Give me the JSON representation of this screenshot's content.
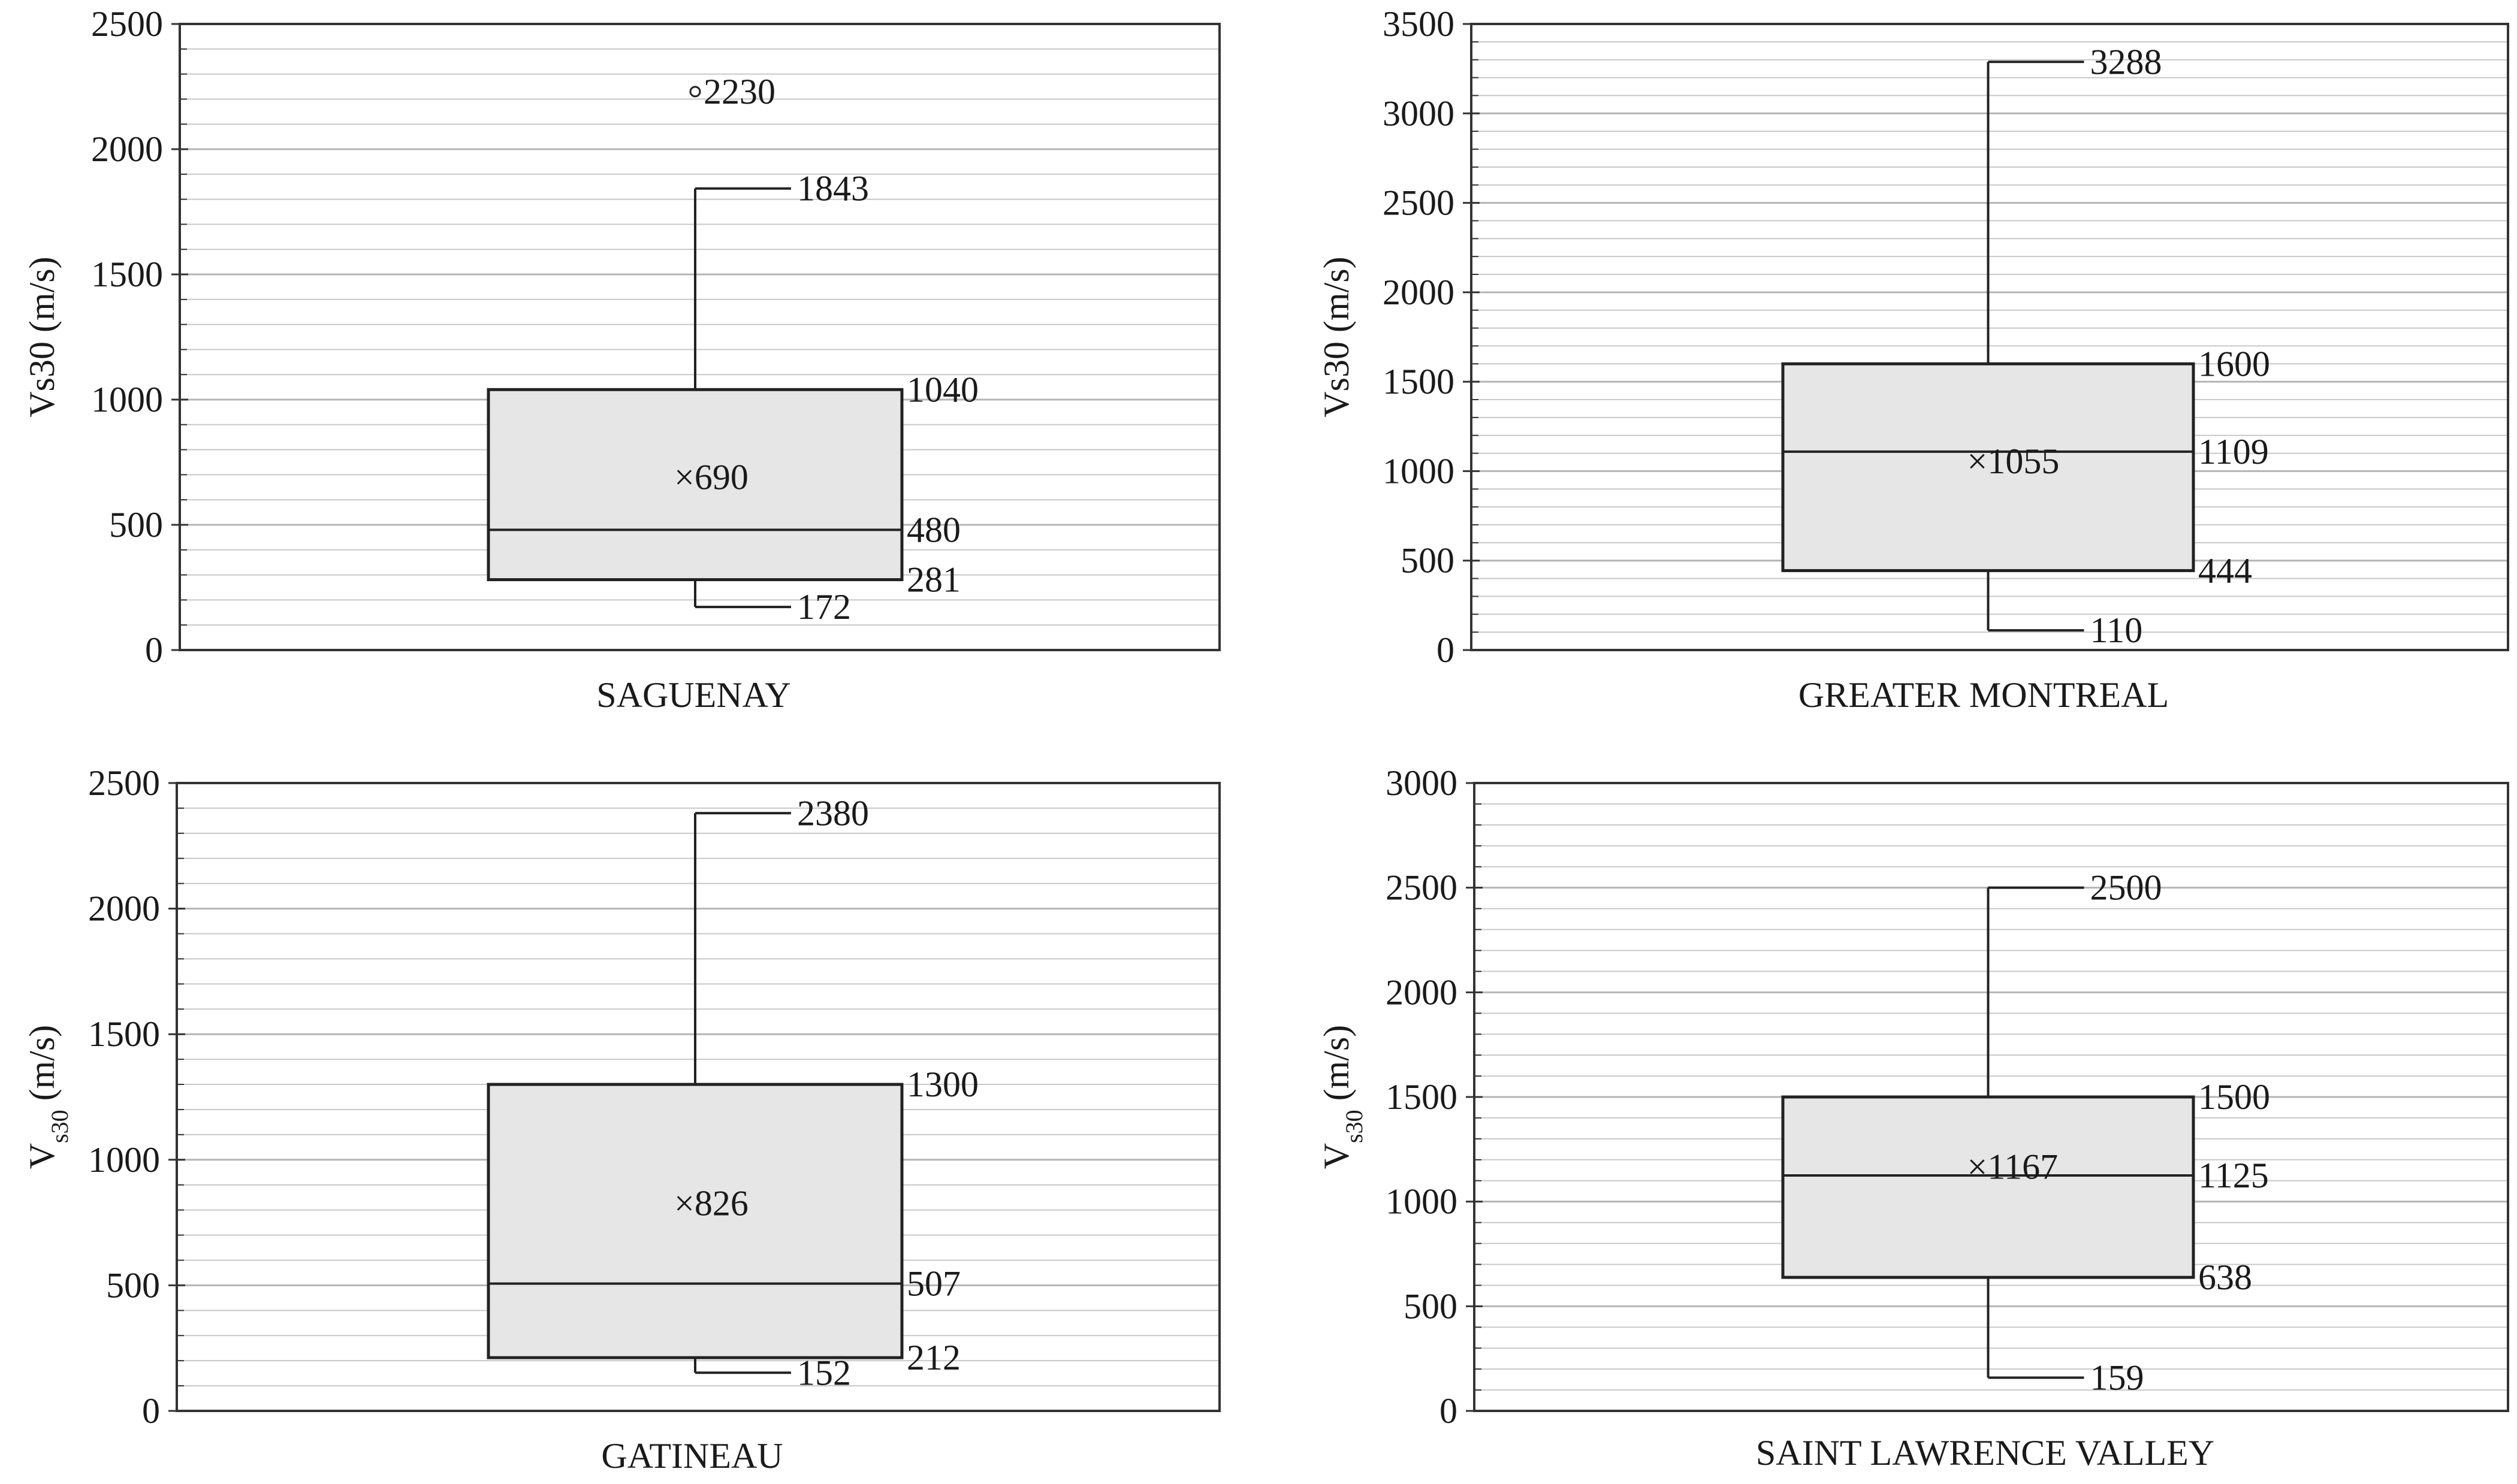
{
  "chart_data": [
    {
      "type": "box",
      "category": "SAGUENAY",
      "ylabel": "Vs30 (m/s)",
      "ylabel_subscript": false,
      "ylim": [
        0,
        2500
      ],
      "yticks": [
        0,
        500,
        1000,
        1500,
        2000,
        2500
      ],
      "grid": true,
      "min": 172,
      "q1": 281,
      "median": 480,
      "q3": 1040,
      "max": 1843,
      "mean": 690,
      "outliers": [
        2230
      ],
      "labels": {
        "min": "172",
        "q1": "281",
        "median": "480",
        "q3": "1040",
        "max": "1843",
        "mean": "×690",
        "outliers": [
          "2230"
        ]
      }
    },
    {
      "type": "box",
      "category": "GREATER MONTREAL",
      "ylabel": "Vs30 (m/s)",
      "ylabel_subscript": false,
      "ylim": [
        0,
        3500
      ],
      "yticks": [
        0,
        500,
        1000,
        1500,
        2000,
        2500,
        3000,
        3500
      ],
      "grid": true,
      "min": 110,
      "q1": 444,
      "median": 1109,
      "q3": 1600,
      "max": 3288,
      "mean": 1055,
      "outliers": [],
      "labels": {
        "min": "110",
        "q1": "444",
        "median": "1109",
        "q3": "1600",
        "max": "3288",
        "mean": "×1055",
        "outliers": []
      }
    },
    {
      "type": "box",
      "category": "GATINEAU",
      "ylabel": "Vs30 (m/s)",
      "ylabel_subscript": true,
      "ylim": [
        0,
        2500
      ],
      "yticks": [
        0,
        500,
        1000,
        1500,
        2000,
        2500
      ],
      "grid": true,
      "min": 152,
      "q1": 212,
      "median": 507,
      "q3": 1300,
      "max": 2380,
      "mean": 826,
      "outliers": [],
      "labels": {
        "min": "152",
        "q1": "212",
        "median": "507",
        "q3": "1300",
        "max": "2380",
        "mean": "×826",
        "outliers": []
      }
    },
    {
      "type": "box",
      "category": "SAINT LAWRENCE VALLEY",
      "ylabel": "Vs30 (m/s)",
      "ylabel_subscript": true,
      "ylim": [
        0,
        3000
      ],
      "yticks": [
        0,
        500,
        1000,
        1500,
        2000,
        2500,
        3000
      ],
      "grid": true,
      "min": 159,
      "q1": 638,
      "median": 1125,
      "q3": 1500,
      "max": 2500,
      "mean": 1167,
      "outliers": [],
      "labels": {
        "min": "159",
        "q1": "638",
        "median": "1125",
        "q3": "1500",
        "max": "2500",
        "mean": "×1167",
        "outliers": []
      }
    }
  ],
  "colors": {
    "box_fill": "#e6e6e6",
    "line": "#222222",
    "grid": "#c8c8c8",
    "frame": "#333333"
  }
}
